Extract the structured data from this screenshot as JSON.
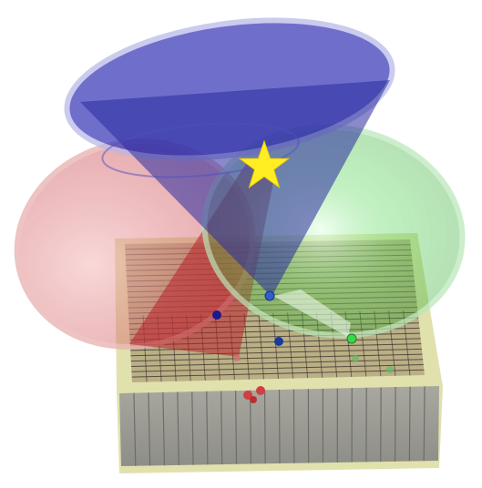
{
  "scene": {
    "colors": {
      "background": "#ffffff",
      "platform_top": "#b9ad7a",
      "platform_side": "#9a9a90",
      "platform_frame": "#d8d89a",
      "grid_line": "#3a2a2a",
      "red_cone": "#c9303a",
      "green_cone": "#3fbf3f",
      "blue_cone": "#3a3ab0",
      "star": "#ffee22",
      "marker_blue": "#2f5fd0",
      "marker_navy": "#1a1a8a",
      "marker_green": "#39d84a",
      "marker_red": "#d04040"
    },
    "icons": [
      "star-icon"
    ]
  }
}
